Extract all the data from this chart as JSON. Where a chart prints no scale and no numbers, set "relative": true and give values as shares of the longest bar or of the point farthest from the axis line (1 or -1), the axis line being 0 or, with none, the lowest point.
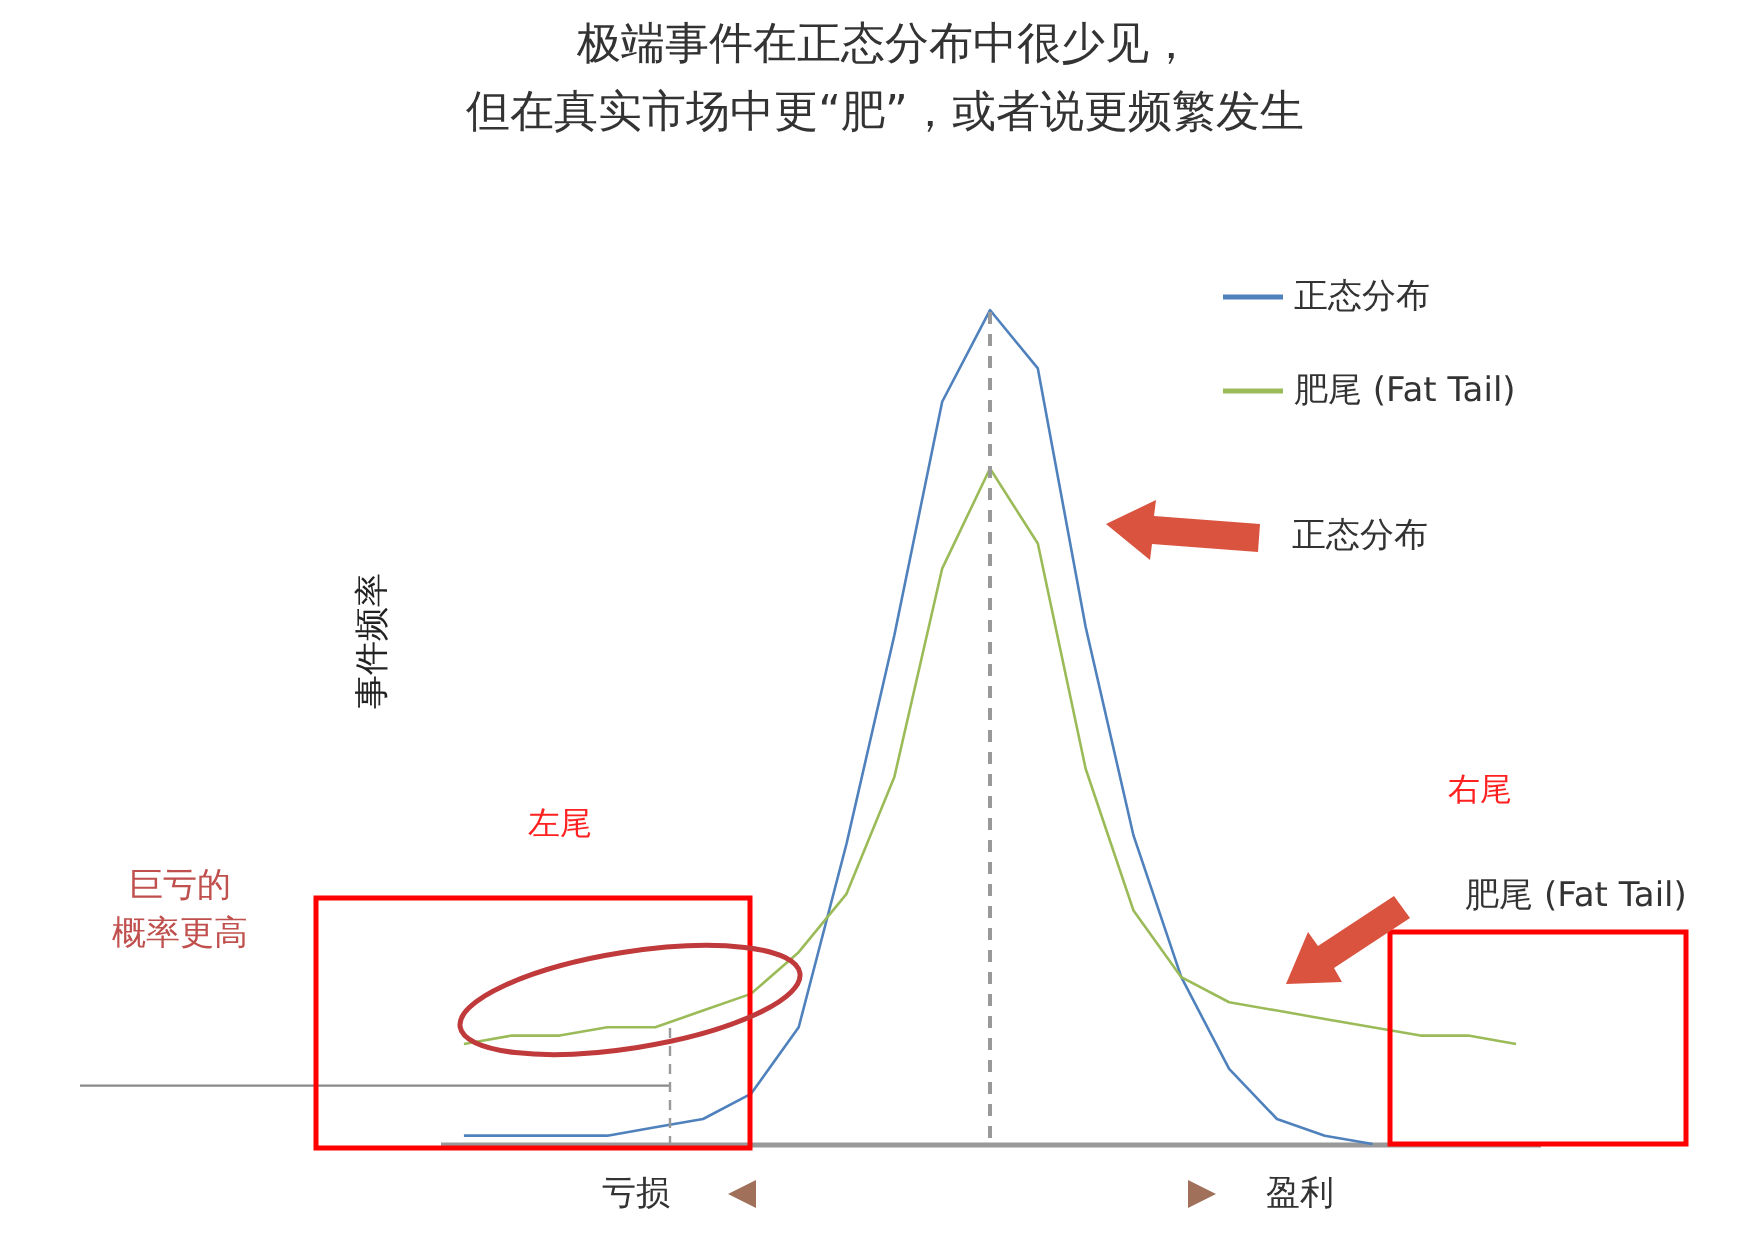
{
  "chart_data": {
    "type": "line",
    "relative": true,
    "title": [
      "极端事件在正态分布中很少见，",
      "但在真实市场中更“肥”，或者说更频繁发生"
    ],
    "ylabel": "事件频率",
    "categories": [
      null,
      null,
      null,
      null,
      null,
      null,
      null,
      null,
      null,
      null,
      null,
      null,
      null,
      null,
      null,
      null,
      null,
      null,
      null,
      null,
      null,
      null,
      null
    ],
    "legend": "top right",
    "line_style": "solid",
    "series": [
      {
        "name": "正态分布",
        "color": "#4f81bd",
        "values": [
          0.01,
          0.01,
          0.01,
          0.01,
          0.02,
          0.03,
          0.06,
          0.14,
          0.36,
          0.61,
          0.89,
          1,
          0.93,
          0.62,
          0.37,
          0.2,
          0.09,
          0.03,
          0.01,
          0,
          null,
          null,
          null
        ]
      },
      {
        "name": "肥尾 (Fat Tail)",
        "color": "#9bbb59",
        "values": [
          0.12,
          0.13,
          0.13,
          0.14,
          0.14,
          0.16,
          0.18,
          0.23,
          0.3,
          0.44,
          0.69,
          0.81,
          0.72,
          0.45,
          0.28,
          0.2,
          0.17,
          0.16,
          0.15,
          0.14,
          0.13,
          0.13,
          0.12
        ]
      }
    ],
    "ref_lines": [
      {
        "axis": "y",
        "value": 0.07,
        "color": "#888888"
      }
    ],
    "annotations": [
      "正态分布",
      "肥尾 (Fat Tail)",
      "左尾",
      "右尾",
      "巨亏的",
      "概率更高",
      "亏损",
      "盈利"
    ]
  }
}
